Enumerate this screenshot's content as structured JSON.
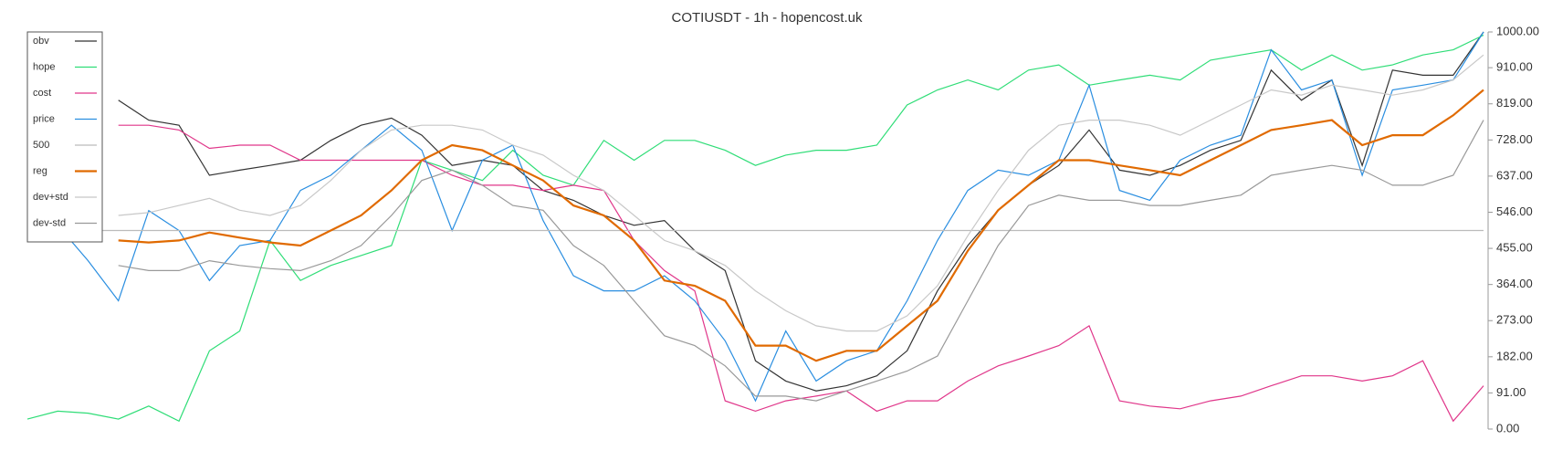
{
  "chart_data": {
    "type": "line",
    "title": "COTIUSDT - 1h - hopencost.uk",
    "ylim": [
      0,
      1000
    ],
    "yticks": [
      {
        "value": 0,
        "label": "0.00"
      },
      {
        "value": 91,
        "label": "91.00"
      },
      {
        "value": 182,
        "label": "182.00"
      },
      {
        "value": 273,
        "label": "273.00"
      },
      {
        "value": 364,
        "label": "364.00"
      },
      {
        "value": 455,
        "label": "455.00"
      },
      {
        "value": 546,
        "label": "546.00"
      },
      {
        "value": 637,
        "label": "637.00"
      },
      {
        "value": 728,
        "label": "728.00"
      },
      {
        "value": 819,
        "label": "819.00"
      },
      {
        "value": 910,
        "label": "910.00"
      },
      {
        "value": 1000,
        "label": "1000.00"
      }
    ],
    "legend": "upper-left",
    "series": [
      {
        "name": "obv",
        "color": "#333333",
        "values": [
          null,
          null,
          null,
          828,
          778,
          765,
          639,
          652,
          664,
          677,
          727,
          765,
          783,
          740,
          664,
          677,
          664,
          601,
          576,
          538,
          513,
          525,
          449,
          399,
          172,
          121,
          96,
          109,
          134,
          197,
          348,
          462,
          551,
          614,
          664,
          753,
          652,
          639,
          664,
          702,
          727,
          904,
          828,
          879,
          664,
          904,
          891,
          891,
          1000
        ]
      },
      {
        "name": "hope",
        "color": "#2fdd77",
        "values": [
          25,
          45,
          40,
          25,
          58,
          20,
          197,
          247,
          475,
          374,
          412,
          437,
          462,
          677,
          652,
          626,
          702,
          639,
          614,
          727,
          677,
          727,
          727,
          702,
          664,
          690,
          702,
          702,
          715,
          816,
          854,
          879,
          854,
          904,
          917,
          866,
          879,
          891,
          879,
          929,
          942,
          955,
          904,
          942,
          904,
          917,
          942,
          955,
          992
        ]
      },
      {
        "name": "cost",
        "color": "#e0368a",
        "values": [
          null,
          null,
          null,
          765,
          765,
          753,
          707,
          715,
          715,
          677,
          677,
          677,
          677,
          677,
          639,
          614,
          614,
          601,
          614,
          601,
          475,
          399,
          348,
          71,
          45,
          71,
          83,
          96,
          45,
          71,
          71,
          121,
          159,
          184,
          210,
          260,
          71,
          58,
          51,
          71,
          83,
          109,
          134,
          134,
          121,
          134,
          172,
          20,
          109
        ]
      },
      {
        "name": "price",
        "color": "#2a8ee0",
        "values": [
          475,
          513,
          424,
          323,
          550,
          500,
          374,
          462,
          475,
          601,
          639,
          702,
          765,
          702,
          500,
          677,
          715,
          525,
          386,
          348,
          348,
          386,
          323,
          222,
          71,
          247,
          121,
          172,
          197,
          323,
          475,
          601,
          652,
          639,
          677,
          866,
          601,
          576,
          677,
          715,
          740,
          955,
          854,
          879,
          639,
          854,
          866,
          879,
          1000
        ]
      },
      {
        "name": "500",
        "color": "#bbbbbb",
        "values": [
          500,
          500,
          500,
          500,
          500,
          500,
          500,
          500,
          500,
          500,
          500,
          500,
          500,
          500,
          500,
          500,
          500,
          500,
          500,
          500,
          500,
          500,
          500,
          500,
          500,
          500,
          500,
          500,
          500,
          500,
          500,
          500,
          500,
          500,
          500,
          500,
          500,
          500,
          500,
          500,
          500,
          500,
          500,
          500,
          500,
          500,
          500,
          500,
          500
        ]
      },
      {
        "name": "reg",
        "color": "#e06a00",
        "values": [
          null,
          null,
          null,
          475,
          470,
          475,
          495,
          482,
          470,
          462,
          500,
          538,
          601,
          677,
          715,
          702,
          664,
          626,
          563,
          538,
          475,
          374,
          361,
          323,
          210,
          210,
          172,
          197,
          197,
          260,
          323,
          449,
          551,
          614,
          677,
          677,
          664,
          652,
          639,
          677,
          715,
          753,
          765,
          778,
          715,
          740,
          740,
          790,
          854
        ]
      },
      {
        "name": "dev+std",
        "color": "#c8c8c8",
        "values": [
          null,
          null,
          null,
          538,
          545,
          563,
          581,
          551,
          538,
          563,
          626,
          702,
          753,
          765,
          765,
          753,
          715,
          690,
          639,
          601,
          538,
          475,
          449,
          412,
          348,
          298,
          260,
          247,
          247,
          285,
          361,
          487,
          601,
          702,
          765,
          778,
          778,
          765,
          740,
          778,
          816,
          854,
          841,
          866,
          854,
          841,
          854,
          879,
          942
        ]
      },
      {
        "name": "dev-std",
        "color": "#999999",
        "values": [
          null,
          null,
          null,
          412,
          399,
          399,
          424,
          412,
          404,
          399,
          424,
          462,
          538,
          626,
          652,
          614,
          563,
          551,
          462,
          412,
          323,
          235,
          210,
          159,
          83,
          83,
          71,
          96,
          121,
          146,
          184,
          323,
          462,
          563,
          589,
          576,
          576,
          563,
          563,
          576,
          589,
          639,
          652,
          664,
          652,
          614,
          614,
          639,
          778
        ]
      }
    ]
  }
}
